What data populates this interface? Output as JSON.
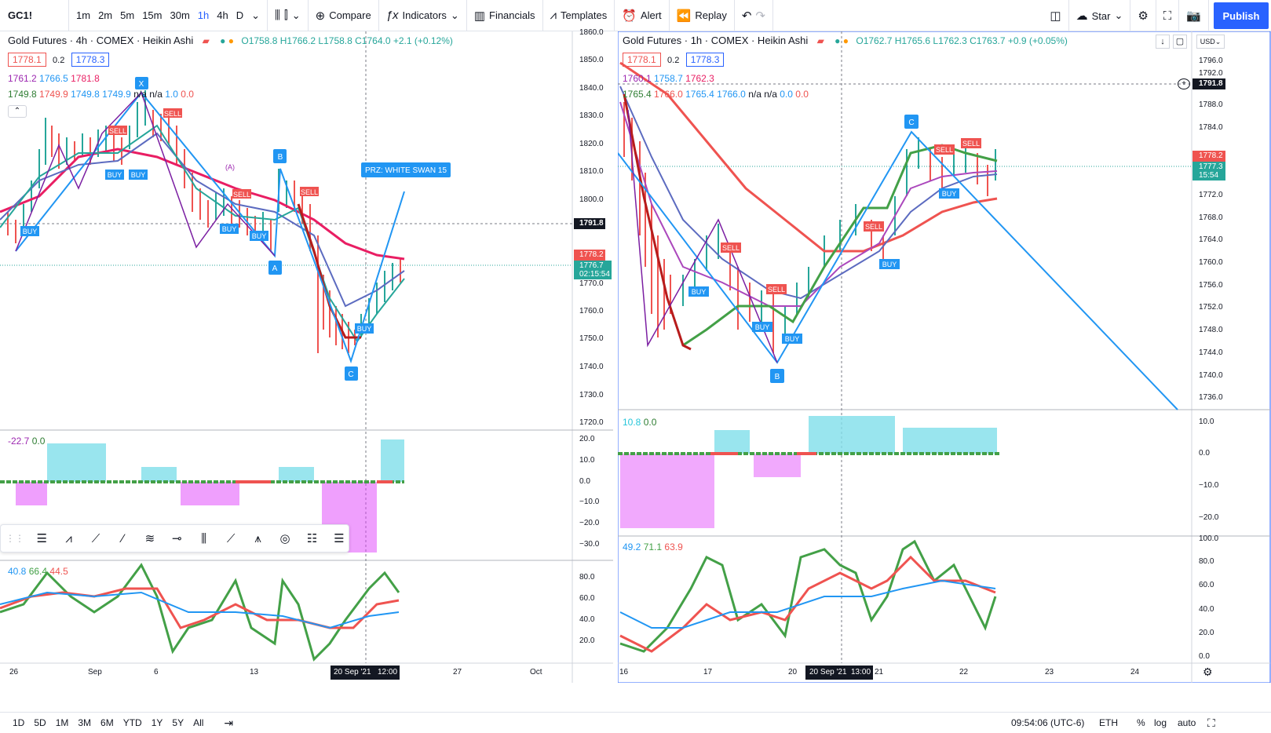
{
  "toolbar": {
    "symbol": "GC1!",
    "intervals": [
      "1m",
      "2m",
      "5m",
      "15m",
      "30m",
      "1h",
      "4h",
      "D"
    ],
    "active_interval": "1h",
    "compare": "Compare",
    "indicators": "Indicators",
    "financials": "Financials",
    "templates": "Templates",
    "alert": "Alert",
    "replay": "Replay",
    "star": "Star",
    "publish": "Publish"
  },
  "left": {
    "title": "Gold Futures · 4h · COMEX · Heikin Ashi",
    "ohlc": "O1758.8 H1766.2 L1758.8 C1764.0 +2.1 (+0.12%)",
    "bid": "1778.1",
    "spread": "0.2",
    "ask": "1778.3",
    "ma_line": [
      "1761.2",
      "1766.5",
      "1781.8"
    ],
    "ind_line": [
      "1749.8",
      "1749.9",
      "1749.8",
      "1749.9",
      "n/a",
      "n/a",
      "1.0",
      "0.0"
    ],
    "price_axis": [
      "1860.0",
      "1850.0",
      "1840.0",
      "1830.0",
      "1820.0",
      "1810.0",
      "1800.0",
      "1791.8",
      "1778.2",
      "1776.7",
      "02:15:54",
      "1770.0",
      "1760.0",
      "1750.0",
      "1740.0",
      "1730.0",
      "1720.0"
    ],
    "macd_legend": [
      "-22.7",
      "0.0"
    ],
    "macd_axis": [
      "20.0",
      "10.0",
      "0.0",
      "−10.0",
      "−20.0",
      "−30.0"
    ],
    "rsi_legend": [
      "40.8",
      "66.4",
      "44.5"
    ],
    "rsi_axis": [
      "80.0",
      "60.0",
      "40.0",
      "20.0"
    ],
    "time_axis": [
      "26",
      "Sep",
      "6",
      "13",
      "20 Sep '21",
      "12:00",
      "27",
      "Oct"
    ],
    "pattern_label": "PRZ: WHITE SWAN 15",
    "points": [
      "X",
      "A",
      "B",
      "C"
    ],
    "sig": [
      "SELL",
      "BUY",
      "(A)"
    ]
  },
  "right": {
    "title": "Gold Futures · 1h · COMEX · Heikin Ashi",
    "ohlc": "O1762.7 H1765.6 L1762.3 C1763.7 +0.9 (+0.05%)",
    "bid": "1778.1",
    "spread": "0.2",
    "ask": "1778.3",
    "ma_line": [
      "1760.1",
      "1758.7",
      "1762.3"
    ],
    "ind_line": [
      "1765.4",
      "1766.0",
      "1765.4",
      "1766.0",
      "n/a",
      "n/a",
      "0.0",
      "0.0"
    ],
    "currency": "USD",
    "price_axis": [
      "1796.0",
      "1792.0",
      "1791.8",
      "1788.0",
      "1784.0",
      "1778.2",
      "1777.3",
      "15:54",
      "1772.0",
      "1768.0",
      "1764.0",
      "1760.0",
      "1756.0",
      "1752.0",
      "1748.0",
      "1744.0",
      "1740.0",
      "1736.0"
    ],
    "macd_legend": [
      "10.8",
      "0.0"
    ],
    "macd_axis": [
      "10.0",
      "0.0",
      "−10.0",
      "−20.0"
    ],
    "rsi_legend": [
      "49.2",
      "71.1",
      "63.9"
    ],
    "rsi_axis": [
      "100.0",
      "80.0",
      "60.0",
      "40.0",
      "20.0",
      "0.0"
    ],
    "time_axis": [
      "16",
      "17",
      "20",
      "20 Sep '21",
      "13:00",
      "21",
      "22",
      "23",
      "24"
    ],
    "points": [
      "B",
      "C"
    ]
  },
  "bottom": {
    "ranges": [
      "1D",
      "5D",
      "1M",
      "3M",
      "6M",
      "YTD",
      "1Y",
      "5Y",
      "All"
    ],
    "time": "09:54:06 (UTC-6)",
    "session": "ETH",
    "pct": "%",
    "log": "log",
    "auto": "auto"
  },
  "colors": {
    "up": "#26a69a",
    "down": "#ef5350",
    "accent": "#2962ff",
    "pink": "#e91e63",
    "macd_up": "#80deea",
    "macd_down": "#e040fb"
  }
}
